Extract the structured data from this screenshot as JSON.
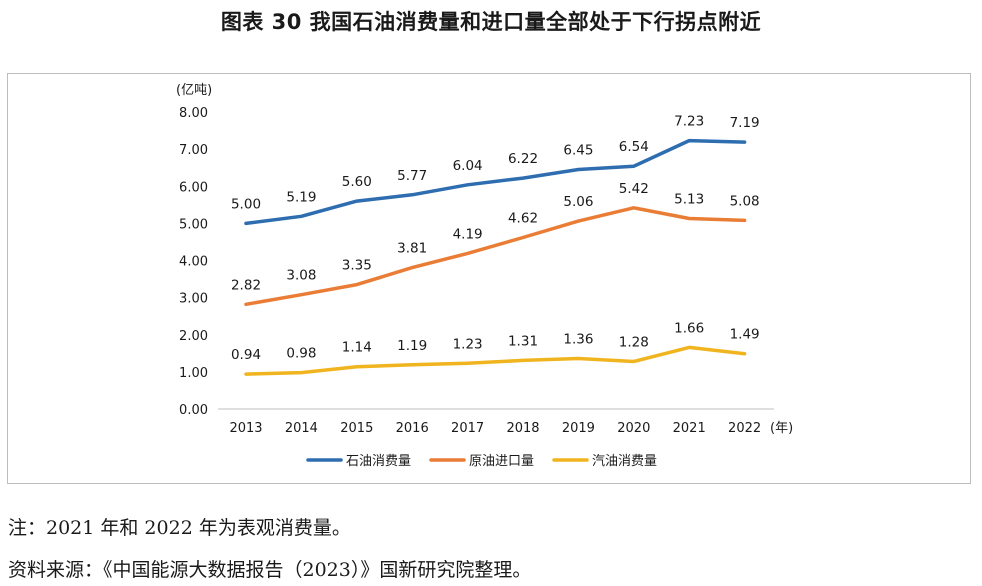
{
  "figure_title": "图表 30 我国石油消费量和进口量全部处于下行拐点附近",
  "notes": {
    "note": "注：2021 年和 2022 年为表观消费量。",
    "source": "资料来源：《中国能源大数据报告（2023）》国新研究院整理。"
  },
  "colors": {
    "series": [
      "#2e6db0",
      "#ea7d36",
      "#f0b41f"
    ],
    "axis": "#bfbfbf",
    "text": "#1a1a1a"
  },
  "chart_data": {
    "type": "line",
    "title": "",
    "xlabel": "(年)",
    "ylabel": "(亿吨)",
    "ylim": [
      0,
      8
    ],
    "y_ticks": [
      "0.00",
      "1.00",
      "2.00",
      "3.00",
      "4.00",
      "5.00",
      "6.00",
      "7.00",
      "8.00"
    ],
    "grid": false,
    "legend_position": "bottom-center",
    "categories": [
      "2013",
      "2014",
      "2015",
      "2016",
      "2017",
      "2018",
      "2019",
      "2020",
      "2021",
      "2022"
    ],
    "series": [
      {
        "name": "石油消费量",
        "values": [
          5.0,
          5.19,
          5.6,
          5.77,
          6.04,
          6.22,
          6.45,
          6.54,
          7.23,
          7.19
        ],
        "labels": [
          "5.00",
          "5.19",
          "5.60",
          "5.77",
          "6.04",
          "6.22",
          "6.45",
          "6.54",
          "7.23",
          "7.19"
        ]
      },
      {
        "name": "原油进口量",
        "values": [
          2.82,
          3.08,
          3.35,
          3.81,
          4.19,
          4.62,
          5.06,
          5.42,
          5.13,
          5.08
        ],
        "labels": [
          "2.82",
          "3.08",
          "3.35",
          "3.81",
          "4.19",
          "4.62",
          "5.06",
          "5.42",
          "5.13",
          "5.08"
        ]
      },
      {
        "name": "汽油消费量",
        "values": [
          0.94,
          0.98,
          1.14,
          1.19,
          1.23,
          1.31,
          1.36,
          1.28,
          1.66,
          1.49
        ],
        "labels": [
          "0.94",
          "0.98",
          "1.14",
          "1.19",
          "1.23",
          "1.31",
          "1.36",
          "1.28",
          "1.66",
          "1.49"
        ]
      }
    ]
  }
}
